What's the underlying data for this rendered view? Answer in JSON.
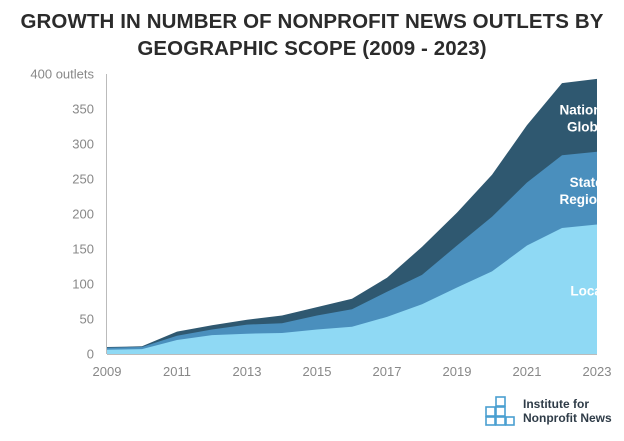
{
  "chart_data": {
    "type": "area",
    "stacked": true,
    "title_lines": [
      "GROWTH IN NUMBER OF NONPROFIT NEWS OUTLETS BY",
      "GEOGRAPHIC SCOPE (2009 - 2023)"
    ],
    "x": [
      2009,
      2010,
      2011,
      2012,
      2013,
      2014,
      2015,
      2016,
      2017,
      2018,
      2019,
      2020,
      2021,
      2022,
      2023
    ],
    "x_ticks": [
      "2009",
      "2011",
      "2013",
      "2015",
      "2017",
      "2019",
      "2021",
      "2023"
    ],
    "y_ticks": [
      "400 outlets",
      "350",
      "300",
      "250",
      "200",
      "150",
      "100",
      "50",
      "0"
    ],
    "ylim": [
      0,
      400
    ],
    "series": [
      {
        "name": "Local",
        "color": "#8fd9f4",
        "values": [
          6,
          7,
          20,
          27,
          29,
          30,
          35,
          39,
          53,
          71,
          95,
          118,
          155,
          180,
          185
        ]
      },
      {
        "name": "State/ Regional",
        "color": "#4a8fbd",
        "values": [
          3,
          3,
          6,
          8,
          13,
          14,
          20,
          25,
          36,
          42,
          60,
          78,
          90,
          104,
          104
        ]
      },
      {
        "name": "National/ Global",
        "color": "#2f5870",
        "values": [
          1,
          1,
          6,
          6,
          7,
          11,
          12,
          15,
          20,
          40,
          47,
          60,
          82,
          103,
          104
        ]
      }
    ],
    "labels": [
      {
        "series": "National/ Global",
        "lines": [
          "National/",
          "Global"
        ]
      },
      {
        "series": "State/ Regional",
        "lines": [
          "State/",
          "Regional"
        ]
      },
      {
        "series": "Local",
        "lines": [
          "Local"
        ]
      }
    ],
    "grid": false,
    "legend": "inline"
  },
  "logo": {
    "line1": "Institute for",
    "line2": "Nonprofit News",
    "color": "#4a9fd0"
  }
}
